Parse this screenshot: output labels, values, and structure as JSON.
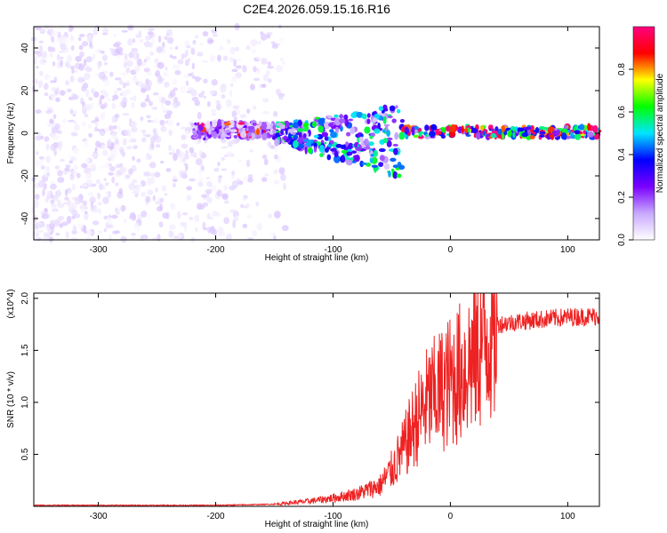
{
  "title": "C2E4.2026.059.15.16.R16",
  "chart_data": [
    {
      "type": "heatmap",
      "xlabel": "Height of straight line (km)",
      "ylabel": "Frequency (Hz)",
      "xlim": [
        -355,
        127
      ],
      "ylim": [
        -50,
        50
      ],
      "x_ticks": [
        -300,
        -200,
        -100,
        0,
        100
      ],
      "y_ticks": [
        -40,
        -20,
        0,
        20,
        40
      ],
      "colorbar": {
        "label": "Normalized spectral amplitude",
        "range": [
          0,
          1
        ],
        "ticks": [
          0.0,
          0.2,
          0.4,
          0.6,
          0.8
        ],
        "colors": [
          "#ffffff",
          "#c8a8ff",
          "#7a00ff",
          "#0000ff",
          "#00e5ff",
          "#00ff00",
          "#ffff00",
          "#ff0000",
          "#ff0080"
        ]
      },
      "regions": [
        {
          "x": [
            -355,
            -140
          ],
          "freq": [
            -50,
            50
          ],
          "amplitude": 0.05,
          "pattern": "noise"
        },
        {
          "x": [
            -220,
            -150
          ],
          "freq": [
            -2,
            5
          ],
          "amplitude": 0.15,
          "pattern": "line"
        },
        {
          "x": [
            -150,
            -40
          ],
          "freq": [
            -15,
            12
          ],
          "amplitude": 0.35,
          "pattern": "dispersed"
        },
        {
          "x": [
            -40,
            127
          ],
          "freq": [
            -2,
            3
          ],
          "amplitude": 0.6,
          "pattern": "line"
        }
      ]
    },
    {
      "type": "line",
      "xlabel": "Height of straight line (km)",
      "ylabel": "SNR (10 * v/v)",
      "y_multiplier": "(x10^4)",
      "xlim": [
        -355,
        127
      ],
      "ylim": [
        0,
        2.05
      ],
      "x_ticks": [
        -300,
        -200,
        -100,
        0,
        100
      ],
      "y_ticks": [
        0.5,
        1.0,
        1.5,
        2.0
      ],
      "series": [
        {
          "color": "#ee2222",
          "x": [
            -355,
            -300,
            -250,
            -200,
            -150,
            -120,
            -100,
            -80,
            -60,
            -50,
            -40,
            -30,
            -20,
            -10,
            0,
            10,
            20,
            30,
            40,
            60,
            80,
            100,
            127
          ],
          "y": [
            0.01,
            0.01,
            0.01,
            0.01,
            0.02,
            0.05,
            0.08,
            0.12,
            0.2,
            0.35,
            0.55,
            0.8,
            1.0,
            1.1,
            1.2,
            1.3,
            1.45,
            1.65,
            1.75,
            1.78,
            1.8,
            1.82,
            1.83
          ]
        }
      ]
    }
  ]
}
